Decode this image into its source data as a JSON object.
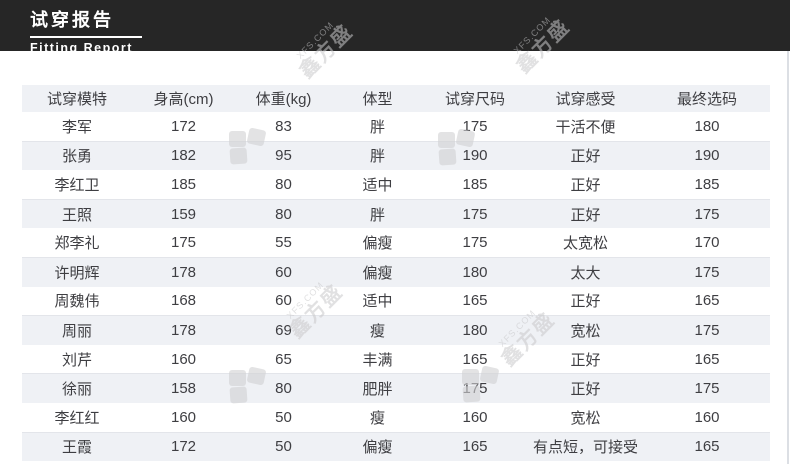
{
  "header": {
    "title": "试穿报告",
    "subtitle": "Fitting Report"
  },
  "table": {
    "columns": [
      "试穿模特",
      "身高(cm)",
      "体重(kg)",
      "体型",
      "试穿尺码",
      "试穿感受",
      "最终选码"
    ],
    "rows": [
      [
        "李军",
        "172",
        "83",
        "胖",
        "175",
        "干活不便",
        "180"
      ],
      [
        "张勇",
        "182",
        "95",
        "胖",
        "190",
        "正好",
        "190"
      ],
      [
        "李红卫",
        "185",
        "80",
        "适中",
        "185",
        "正好",
        "185"
      ],
      [
        "王照",
        "159",
        "80",
        "胖",
        "175",
        "正好",
        "175"
      ],
      [
        "郑李礼",
        "175",
        "55",
        "偏瘦",
        "175",
        "太宽松",
        "170"
      ],
      [
        "许明辉",
        "178",
        "60",
        "偏瘦",
        "180",
        "太大",
        "175"
      ],
      [
        "周魏伟",
        "168",
        "60",
        "适中",
        "165",
        "正好",
        "165"
      ],
      [
        "周丽",
        "178",
        "69",
        "瘦",
        "180",
        "宽松",
        "175"
      ],
      [
        "刘芹",
        "160",
        "65",
        "丰满",
        "165",
        "正好",
        "165"
      ],
      [
        "徐丽",
        "158",
        "80",
        "肥胖",
        "175",
        "正好",
        "175"
      ],
      [
        "李红红",
        "160",
        "50",
        "瘦",
        "160",
        "宽松",
        "160"
      ],
      [
        "王霞",
        "172",
        "50",
        "偏瘦",
        "165",
        "有点短，可接受",
        "165"
      ]
    ]
  },
  "watermark": {
    "text_small": "XFS.COM",
    "text_large": "鑫方盛"
  },
  "colors": {
    "header_bar": "#262626",
    "stripe": "#eff1f5",
    "text": "#3e3e42",
    "watermark": "#c9c9cb"
  }
}
